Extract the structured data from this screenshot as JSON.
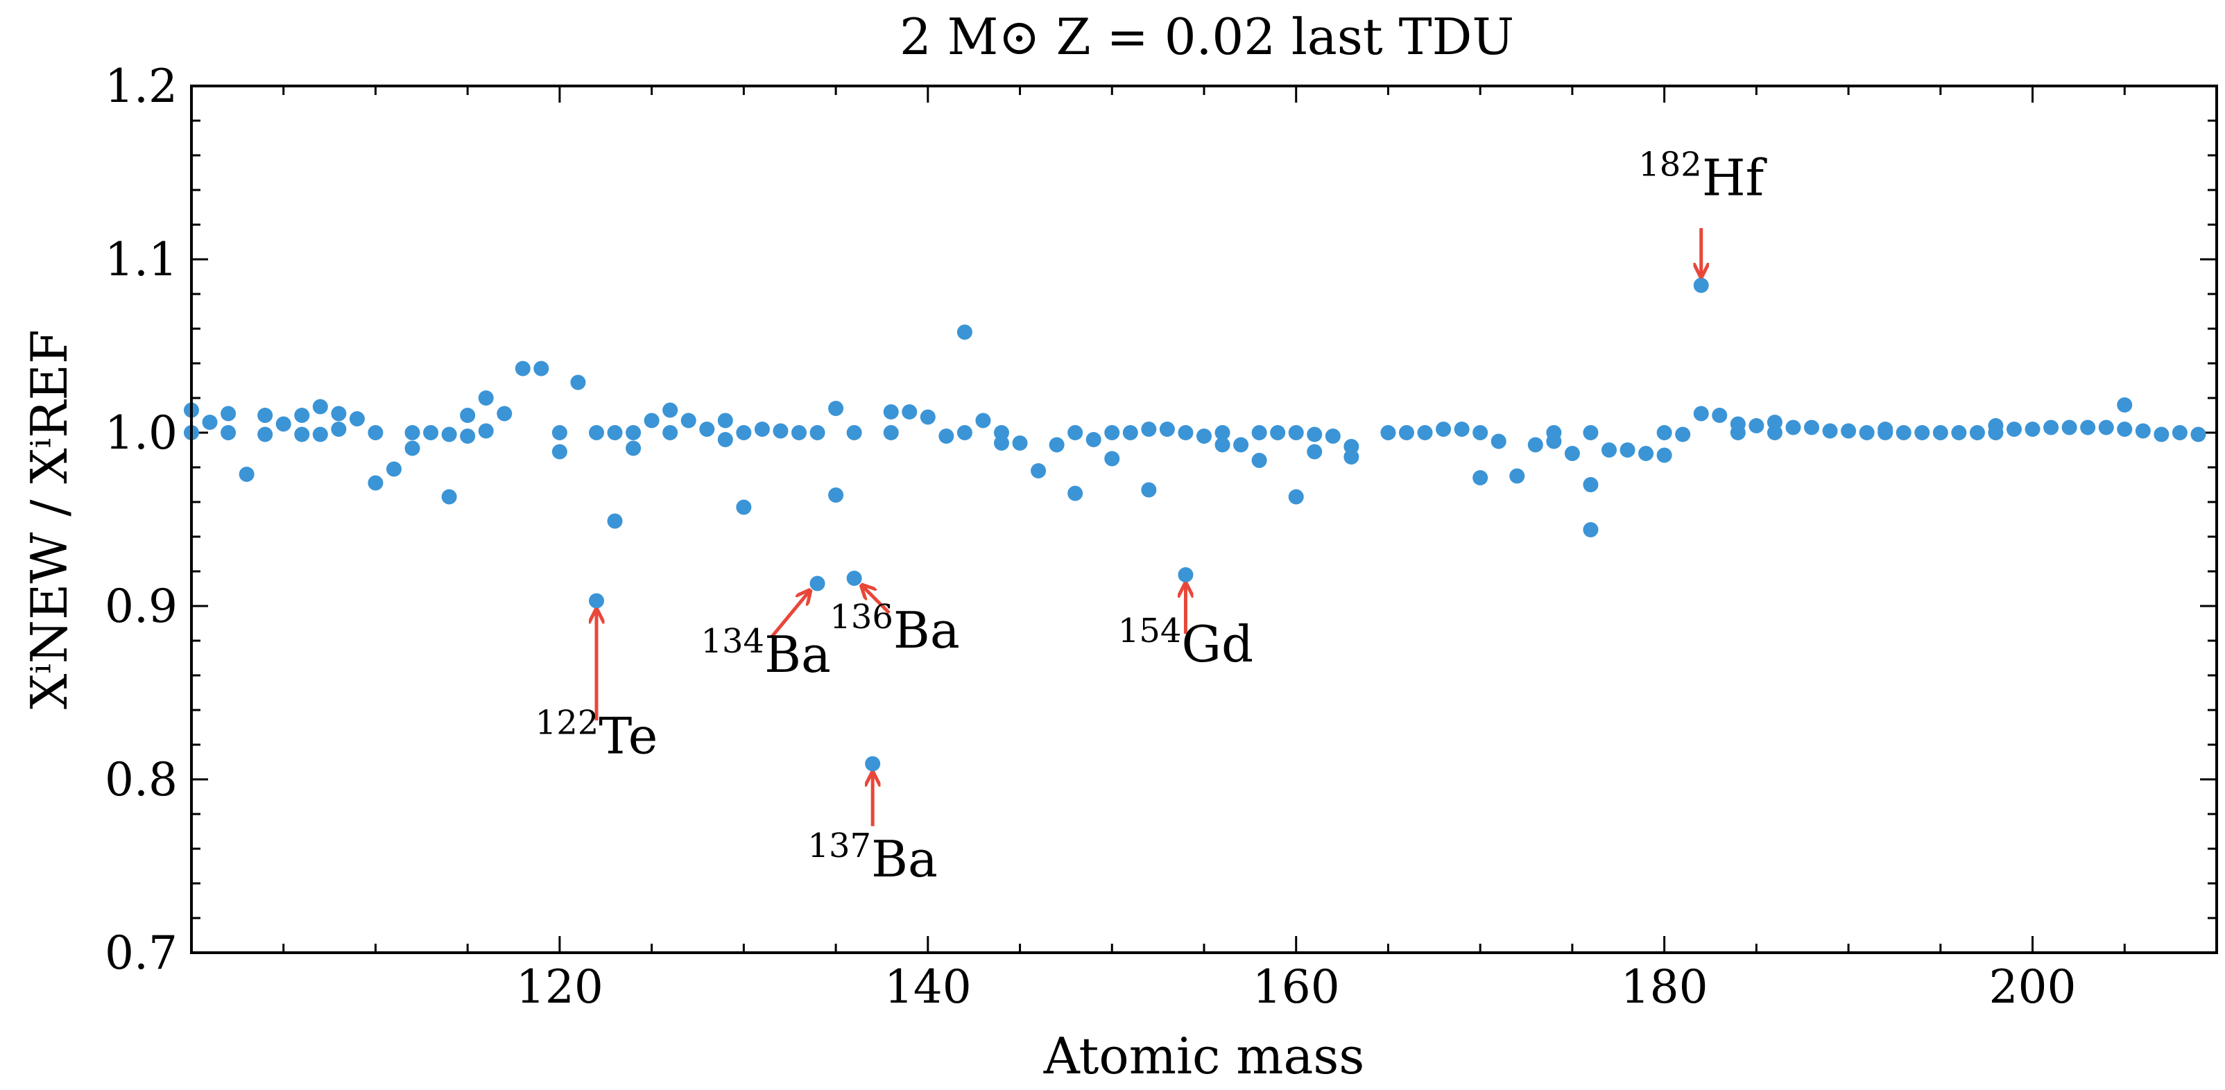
{
  "chart_data": {
    "type": "scatter",
    "title": "2 M⊙ Z = 0.02 last TDU",
    "xlabel": "Atomic mass",
    "ylabel": "XⁱNEW / XⁱREF",
    "xlim": [
      100,
      210
    ],
    "ylim": [
      0.7,
      1.2
    ],
    "x_ticks": [
      120,
      140,
      160,
      180,
      200
    ],
    "x_minor_step": 5,
    "y_ticks": [
      0.7,
      0.8,
      0.9,
      1.0,
      1.1,
      1.2
    ],
    "y_tick_labels": [
      "0.7",
      "0.8",
      "0.9",
      "1.0",
      "1.1",
      "1.2"
    ],
    "y_minor_step": 0.02,
    "grid": false,
    "legend": "none",
    "marker_color": "#3b94d6",
    "arrow_color": "#e8473a",
    "series": [
      {
        "points": [
          [
            100,
            1.013
          ],
          [
            100,
            1.0
          ],
          [
            101,
            1.006
          ],
          [
            102,
            1.011
          ],
          [
            102,
            1.0
          ],
          [
            103,
            0.976
          ],
          [
            104,
            1.01
          ],
          [
            104,
            0.999
          ],
          [
            105,
            1.005
          ],
          [
            106,
            1.01
          ],
          [
            106,
            0.999
          ],
          [
            107,
            1.015
          ],
          [
            107,
            0.999
          ],
          [
            108,
            1.011
          ],
          [
            108,
            1.002
          ],
          [
            109,
            1.008
          ],
          [
            110,
            1.0
          ],
          [
            110,
            0.971
          ],
          [
            111,
            0.979
          ],
          [
            112,
            1.0
          ],
          [
            112,
            0.991
          ],
          [
            113,
            1.0
          ],
          [
            114,
            0.999
          ],
          [
            114,
            0.963
          ],
          [
            115,
            1.01
          ],
          [
            115,
            0.998
          ],
          [
            116,
            1.02
          ],
          [
            116,
            1.001
          ],
          [
            117,
            1.011
          ],
          [
            118,
            1.037
          ],
          [
            119,
            1.037
          ],
          [
            120,
            1.0
          ],
          [
            120,
            0.989
          ],
          [
            121,
            1.029
          ],
          [
            122,
            1.0
          ],
          [
            122,
            0.903
          ],
          [
            123,
            1.0
          ],
          [
            123,
            0.949
          ],
          [
            124,
            1.0
          ],
          [
            124,
            0.991
          ],
          [
            125,
            1.007
          ],
          [
            126,
            1.013
          ],
          [
            126,
            1.0
          ],
          [
            127,
            1.007
          ],
          [
            128,
            1.002
          ],
          [
            129,
            1.007
          ],
          [
            129,
            0.996
          ],
          [
            130,
            1.0
          ],
          [
            130,
            0.957
          ],
          [
            131,
            1.002
          ],
          [
            132,
            1.001
          ],
          [
            133,
            1.0
          ],
          [
            134,
            1.0
          ],
          [
            134,
            0.913
          ],
          [
            135,
            1.014
          ],
          [
            135,
            0.964
          ],
          [
            136,
            1.0
          ],
          [
            136,
            0.916
          ],
          [
            137,
            0.809
          ],
          [
            138,
            1.012
          ],
          [
            138,
            1.0
          ],
          [
            139,
            1.012
          ],
          [
            140,
            1.009
          ],
          [
            141,
            0.998
          ],
          [
            142,
            1.058
          ],
          [
            142,
            1.0
          ],
          [
            143,
            1.007
          ],
          [
            144,
            1.0
          ],
          [
            144,
            0.994
          ],
          [
            145,
            0.994
          ],
          [
            146,
            0.978
          ],
          [
            147,
            0.993
          ],
          [
            148,
            1.0
          ],
          [
            148,
            0.965
          ],
          [
            149,
            0.996
          ],
          [
            150,
            1.0
          ],
          [
            150,
            0.985
          ],
          [
            151,
            1.0
          ],
          [
            152,
            1.002
          ],
          [
            152,
            0.967
          ],
          [
            153,
            1.002
          ],
          [
            154,
            1.0
          ],
          [
            154,
            0.918
          ],
          [
            155,
            0.998
          ],
          [
            156,
            1.0
          ],
          [
            156,
            0.993
          ],
          [
            157,
            0.993
          ],
          [
            158,
            1.0
          ],
          [
            158,
            0.984
          ],
          [
            159,
            1.0
          ],
          [
            160,
            1.0
          ],
          [
            160,
            0.963
          ],
          [
            161,
            0.999
          ],
          [
            161,
            0.989
          ],
          [
            162,
            0.998
          ],
          [
            163,
            0.992
          ],
          [
            163,
            0.986
          ],
          [
            165,
            1.0
          ],
          [
            166,
            1.0
          ],
          [
            167,
            1.0
          ],
          [
            168,
            1.002
          ],
          [
            169,
            1.002
          ],
          [
            170,
            1.0
          ],
          [
            170,
            0.974
          ],
          [
            171,
            0.995
          ],
          [
            172,
            0.975
          ],
          [
            173,
            0.993
          ],
          [
            174,
            1.0
          ],
          [
            174,
            0.995
          ],
          [
            175,
            0.988
          ],
          [
            176,
            1.0
          ],
          [
            176,
            0.97
          ],
          [
            176,
            0.944
          ],
          [
            177,
            0.99
          ],
          [
            178,
            0.99
          ],
          [
            179,
            0.988
          ],
          [
            180,
            1.0
          ],
          [
            180,
            0.987
          ],
          [
            181,
            0.999
          ],
          [
            182,
            1.085
          ],
          [
            182,
            1.011
          ],
          [
            183,
            1.01
          ],
          [
            184,
            1.005
          ],
          [
            184,
            1.0
          ],
          [
            185,
            1.004
          ],
          [
            186,
            1.006
          ],
          [
            186,
            1.0
          ],
          [
            187,
            1.003
          ],
          [
            188,
            1.003
          ],
          [
            189,
            1.001
          ],
          [
            190,
            1.001
          ],
          [
            191,
            1.0
          ],
          [
            192,
            1.002
          ],
          [
            192,
            1.0
          ],
          [
            193,
            1.0
          ],
          [
            194,
            1.0
          ],
          [
            195,
            1.0
          ],
          [
            196,
            1.0
          ],
          [
            197,
            1.0
          ],
          [
            198,
            1.004
          ],
          [
            198,
            1.0
          ],
          [
            199,
            1.002
          ],
          [
            200,
            1.002
          ],
          [
            201,
            1.003
          ],
          [
            202,
            1.003
          ],
          [
            203,
            1.003
          ],
          [
            204,
            1.003
          ],
          [
            205,
            1.016
          ],
          [
            205,
            1.002
          ],
          [
            206,
            1.001
          ],
          [
            207,
            0.999
          ],
          [
            208,
            1.0
          ],
          [
            209,
            0.999
          ]
        ]
      }
    ],
    "annotations": [
      {
        "mass": "122",
        "element": "Te",
        "target": [
          122,
          0.903
        ],
        "text_anchor": [
          122,
          0.815
        ],
        "arrow_tail": [
          122,
          0.834
        ],
        "arrow_head": [
          122,
          0.898
        ]
      },
      {
        "mass": "134",
        "element": "Ba",
        "target": [
          134,
          0.913
        ],
        "text_anchor": [
          131.2,
          0.862
        ],
        "arrow_tail": [
          131.5,
          0.882
        ],
        "arrow_head": [
          133.6,
          0.909
        ]
      },
      {
        "mass": "136",
        "element": "Ba",
        "target": [
          136,
          0.916
        ],
        "text_anchor": [
          138.2,
          0.876
        ],
        "arrow_tail": [
          137.9,
          0.896
        ],
        "arrow_head": [
          136.4,
          0.912
        ]
      },
      {
        "mass": "137",
        "element": "Ba",
        "target": [
          137,
          0.809
        ],
        "text_anchor": [
          137.0,
          0.744
        ],
        "arrow_tail": [
          137,
          0.773
        ],
        "arrow_head": [
          137,
          0.804
        ]
      },
      {
        "mass": "154",
        "element": "Gd",
        "target": [
          154,
          0.918
        ],
        "text_anchor": [
          154.0,
          0.868
        ],
        "arrow_tail": [
          154,
          0.884
        ],
        "arrow_head": [
          154,
          0.913
        ]
      },
      {
        "mass": "182",
        "element": "Hf",
        "target": [
          182,
          1.085
        ],
        "text_anchor": [
          182.0,
          1.137
        ],
        "arrow_tail": [
          182,
          1.118
        ],
        "arrow_head": [
          182,
          1.09
        ]
      }
    ]
  }
}
